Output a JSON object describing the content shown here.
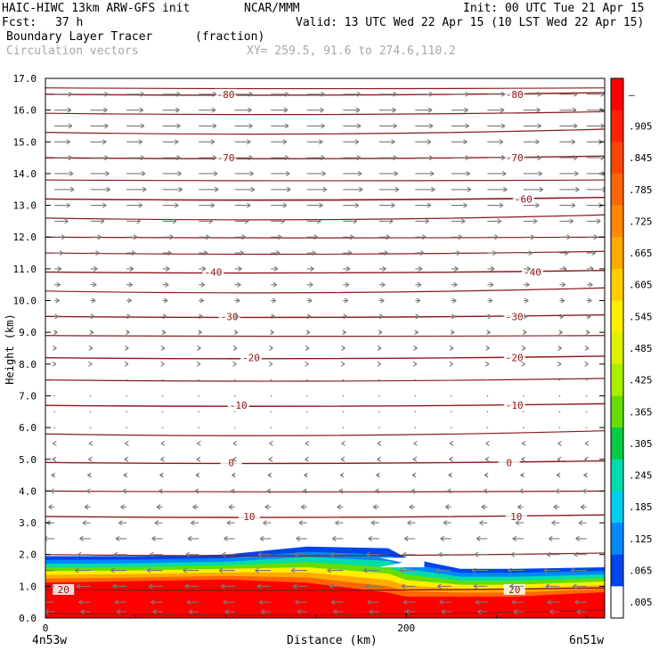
{
  "header": {
    "model": "HAIC-HIWC 13km ARW-GFS init",
    "org": "NCAR/MMM",
    "init": "Init: 00 UTC Tue 21 Apr 15",
    "fcst_label": "Fcst:",
    "fcst_value": "37 h",
    "valid": "Valid: 13 UTC Wed 22 Apr 15 (10 LST Wed 22 Apr 15)",
    "field_name": "Boundary Layer Tracer",
    "field_units": "(fraction)",
    "vector_label": "Circulation vectors",
    "xy_label": "XY= 259.5, 91.6 to 274.6,110.2"
  },
  "colors": {
    "contour": "#8b1a1a",
    "vector": "#7a7a7a"
  },
  "chart_data": {
    "type": "heatmap",
    "xlabel": "Distance (km)",
    "ylabel": "Height (km)",
    "xlim": [
      0,
      310
    ],
    "ylim": [
      0,
      17
    ],
    "x_ticks": [
      0,
      200
    ],
    "x_tick_labels": [
      "0",
      "200"
    ],
    "x_end_labels": [
      "4n53w",
      "6n51w"
    ],
    "y_ticks": [
      0,
      1,
      2,
      3,
      4,
      5,
      6,
      7,
      8,
      9,
      10,
      11,
      12,
      13,
      14,
      15,
      16,
      17
    ],
    "y_tick_labels": [
      "0.0",
      "1.0",
      "2.0",
      "3.0",
      "4.0",
      "5.0",
      "6.0",
      "7.0",
      "8.0",
      "9.0",
      "10.0",
      "11.0",
      "12.0",
      "13.0",
      "14.0",
      "15.0",
      "16.0",
      "17.0"
    ],
    "colorbar": {
      "labels": [
        "–",
        ".905",
        ".845",
        ".785",
        ".725",
        ".665",
        ".605",
        ".545",
        ".485",
        ".425",
        ".365",
        ".305",
        ".245",
        ".185",
        ".125",
        ".065",
        ".005"
      ],
      "colors": [
        "#ff0000",
        "#ff2200",
        "#ff4400",
        "#ff6600",
        "#ff8800",
        "#ffaa00",
        "#ffcc00",
        "#ffee00",
        "#ddf000",
        "#aaee00",
        "#66dd00",
        "#00cc44",
        "#00ddaa",
        "#00ccee",
        "#0088ff",
        "#0044ee",
        "#ffffff"
      ]
    },
    "tracer_layer": {
      "note_x_km": [
        0,
        50,
        100,
        145,
        190,
        200,
        230,
        260,
        310
      ],
      "top_km": [
        1.95,
        1.95,
        2.0,
        2.25,
        2.2,
        1.9,
        1.55,
        1.55,
        1.6
      ],
      "red_top_km": [
        1.0,
        1.05,
        1.1,
        0.95,
        0.6,
        0.5,
        0.55,
        0.55,
        0.7
      ]
    },
    "temperature_contours": [
      {
        "label": "-80",
        "height_km": 16.5,
        "label_x_km": [
          100,
          260
        ]
      },
      {
        "label": "-70",
        "height_km": 14.5,
        "label_x_km": [
          100,
          260
        ]
      },
      {
        "label": "-60",
        "height_km": 13.2,
        "label_x_km": [
          265
        ]
      },
      {
        "label": "-40",
        "height_km": 10.9,
        "label_x_km": [
          93,
          270
        ]
      },
      {
        "label": "-30",
        "height_km": 9.5,
        "label_x_km": [
          102,
          260
        ]
      },
      {
        "label": "-20",
        "height_km": 8.2,
        "label_x_km": [
          114,
          260
        ]
      },
      {
        "label": "-10",
        "height_km": 6.7,
        "label_x_km": [
          107,
          260
        ]
      },
      {
        "label": "0",
        "height_km": 4.9,
        "label_x_km": [
          103,
          257
        ]
      },
      {
        "label": "10",
        "height_km": 3.2,
        "label_x_km": [
          113,
          261
        ]
      },
      {
        "label": "20",
        "height_km": 0.9,
        "label_x_km": [
          10,
          260
        ]
      }
    ],
    "extra_contour_heights_km": [
      16.7,
      15.9,
      15.3,
      13.8,
      13.2,
      12.6,
      12.0,
      11.5,
      10.3,
      8.9,
      7.5,
      5.8,
      4.0,
      2.0,
      0.15
    ],
    "wind_vectors": {
      "x_km": [
        5,
        25,
        45,
        65,
        85,
        105,
        125,
        145,
        165,
        185,
        205,
        225,
        245,
        265,
        285,
        300
      ],
      "levels": [
        {
          "h": 16.5,
          "u": 0.9
        },
        {
          "h": 16.0,
          "u": 0.85
        },
        {
          "h": 15.5,
          "u": 0.9
        },
        {
          "h": 15.0,
          "u": 0.8
        },
        {
          "h": 14.5,
          "u": 0.9
        },
        {
          "h": 14.0,
          "u": 0.95
        },
        {
          "h": 13.5,
          "u": 1.0
        },
        {
          "h": 13.0,
          "u": 0.8
        },
        {
          "h": 12.5,
          "u": 0.7
        },
        {
          "h": 12.0,
          "u": 0.55
        },
        {
          "h": 11.5,
          "u": 0.45
        },
        {
          "h": 11.0,
          "u": 0.35
        },
        {
          "h": 10.5,
          "u": 0.3
        },
        {
          "h": 10.0,
          "u": 0.25
        },
        {
          "h": 9.5,
          "u": 0.2
        },
        {
          "h": 9.0,
          "u": 0.15
        },
        {
          "h": 8.5,
          "u": 0.1
        },
        {
          "h": 8.0,
          "u": 0.08
        },
        {
          "h": 7.5,
          "u": 0.06
        },
        {
          "h": 7.0,
          "u": 0.05
        },
        {
          "h": 6.5,
          "u": -0.05
        },
        {
          "h": 6.0,
          "u": -0.06
        },
        {
          "h": 5.5,
          "u": -0.08
        },
        {
          "h": 5.0,
          "u": -0.1
        },
        {
          "h": 4.5,
          "u": -0.15
        },
        {
          "h": 4.0,
          "u": -0.2
        },
        {
          "h": 3.5,
          "u": -0.3
        },
        {
          "h": 3.0,
          "u": -0.4
        },
        {
          "h": 2.5,
          "u": -0.55
        },
        {
          "h": 2.0,
          "u": -0.65
        },
        {
          "h": 1.5,
          "u": -0.8
        },
        {
          "h": 1.0,
          "u": -0.7
        },
        {
          "h": 0.5,
          "u": -0.6
        },
        {
          "h": 0.2,
          "u": -0.5
        }
      ]
    }
  }
}
